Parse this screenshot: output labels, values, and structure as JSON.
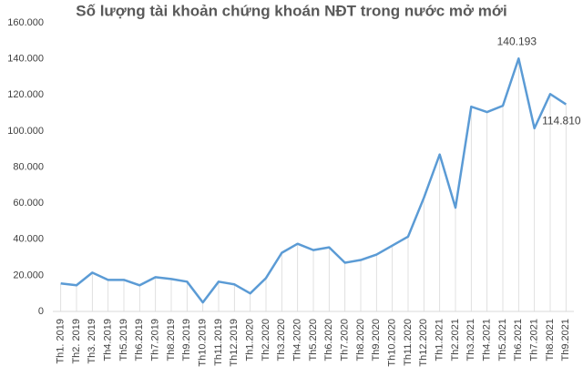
{
  "chart_data": {
    "type": "line",
    "title": "Số lượng tài khoản chứng khoán NĐT trong nước mở mới",
    "categories": [
      "Th1. 2019",
      "Th2. 2019",
      "Th3. 2019",
      "Th4.2019",
      "Th5.2019",
      "Th6.2019",
      "Th7.2019",
      "Th8.2019",
      "Th9.2019",
      "Th10.2019",
      "Th11.2019",
      "Th12.2019",
      "Th1.2020",
      "Th2.2020",
      "Th3.2020",
      "Th4.2020",
      "Th5.2020",
      "Th6.2020",
      "Th7.2020",
      "Th8.2020",
      "Th9.2020",
      "Th10.2020",
      "Th11.2020",
      "Th12.2020",
      "Th1.2021",
      "Th2.2021",
      "Th3.2021",
      "Th4.2021",
      "Th5.2021",
      "Th6.2021",
      "Th7.2021",
      "Th8.2021",
      "Th9.2021"
    ],
    "values": [
      15500,
      14500,
      21500,
      17500,
      17500,
      14500,
      19000,
      18000,
      16500,
      5000,
      16500,
      15000,
      10000,
      18500,
      32500,
      37500,
      34000,
      35500,
      27000,
      28500,
      31500,
      36500,
      41500,
      63000,
      87000,
      57500,
      113500,
      110500,
      114000,
      140193,
      101500,
      120500,
      114810
    ],
    "value_labels": [
      null,
      null,
      null,
      null,
      null,
      null,
      null,
      null,
      null,
      null,
      null,
      null,
      null,
      null,
      null,
      null,
      null,
      null,
      null,
      null,
      null,
      null,
      null,
      null,
      null,
      null,
      null,
      null,
      null,
      "140.193",
      null,
      null,
      "114.810"
    ],
    "color": "#5b9bd5",
    "ylim": [
      0,
      160000
    ],
    "yticks": [
      0,
      {
        "value": 20000,
        "label": "20.000"
      },
      {
        "value": 40000,
        "label": "40.000"
      },
      {
        "value": 60000,
        "label": "60.000"
      },
      {
        "value": 80000,
        "label": "80.000"
      },
      {
        "value": 100000,
        "label": "100.000"
      },
      {
        "value": 120000,
        "label": "120.000"
      },
      {
        "value": 140000,
        "label": "140.000"
      },
      {
        "value": 160000,
        "label": "160.000"
      }
    ],
    "drop_lines": true
  }
}
